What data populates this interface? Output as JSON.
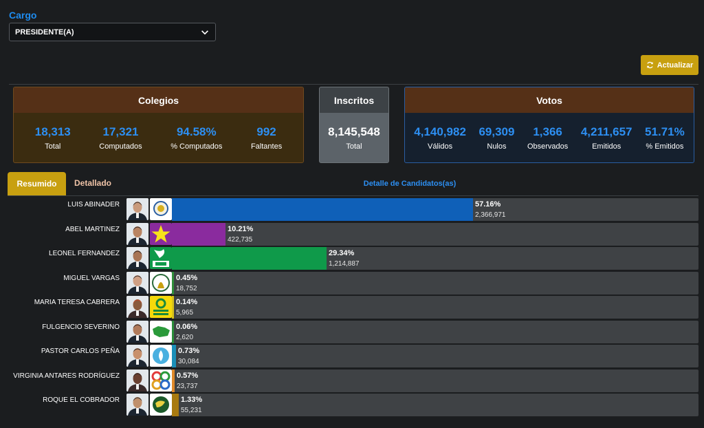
{
  "cargo": {
    "label": "Cargo",
    "selected": "PRESIDENTE(A)"
  },
  "actualizar_label": "Actualizar",
  "colegios": {
    "title": "Colegios",
    "stats": [
      {
        "value": "18,313",
        "label": "Total"
      },
      {
        "value": "17,321",
        "label": "Computados"
      },
      {
        "value": "94.58%",
        "label": "% Computados"
      },
      {
        "value": "992",
        "label": "Faltantes"
      }
    ]
  },
  "inscritos": {
    "title": "Inscritos",
    "value": "8,145,548",
    "label": "Total"
  },
  "votos": {
    "title": "Votos",
    "stats": [
      {
        "value": "4,140,982",
        "label": "Válidos"
      },
      {
        "value": "69,309",
        "label": "Nulos"
      },
      {
        "value": "1,366",
        "label": "Observados"
      },
      {
        "value": "4,211,657",
        "label": "Emitidos"
      },
      {
        "value": "51.71%",
        "label": "% Emitidos"
      }
    ]
  },
  "tabs": {
    "resumen": "Resumido",
    "detallado": "Detallado"
  },
  "detalle_title": "Detalle de Candidatos(as)",
  "colors": {
    "accent": "#c8a010",
    "blue": "#2d8ff2"
  },
  "candidates": [
    {
      "name": "LUIS ABINADER",
      "pct": "57.16%",
      "votes": "2,366,971",
      "share": 57.16,
      "color": "#0f60b8"
    },
    {
      "name": "ABEL MARTINEZ",
      "pct": "10.21%",
      "votes": "422,735",
      "share": 10.21,
      "color": "#8a2b9e"
    },
    {
      "name": "LEONEL FERNANDEZ",
      "pct": "29.34%",
      "votes": "1,214,887",
      "share": 29.34,
      "color": "#0f9a4a"
    },
    {
      "name": "MIGUEL VARGAS",
      "pct": "0.45%",
      "votes": "18,752",
      "share": 0.45,
      "color": "#2f8f3a"
    },
    {
      "name": "MARIA TERESA CABRERA",
      "pct": "0.14%",
      "votes": "5,965",
      "share": 0.14,
      "color": "#d8c21a"
    },
    {
      "name": "FULGENCIO SEVERINO",
      "pct": "0.06%",
      "votes": "2,620",
      "share": 0.06,
      "color": "#2a8f3a"
    },
    {
      "name": "PASTOR CARLOS PEÑA",
      "pct": "0.73%",
      "votes": "30,084",
      "share": 0.73,
      "color": "#1a8fb8"
    },
    {
      "name": "VIRGINIA ANTARES RODRÍGUEZ",
      "pct": "0.57%",
      "votes": "23,737",
      "share": 0.57,
      "color": "#e08a2a"
    },
    {
      "name": "ROQUE EL COBRADOR",
      "pct": "1.33%",
      "votes": "55,231",
      "share": 1.33,
      "color": "#a87a10"
    }
  ]
}
